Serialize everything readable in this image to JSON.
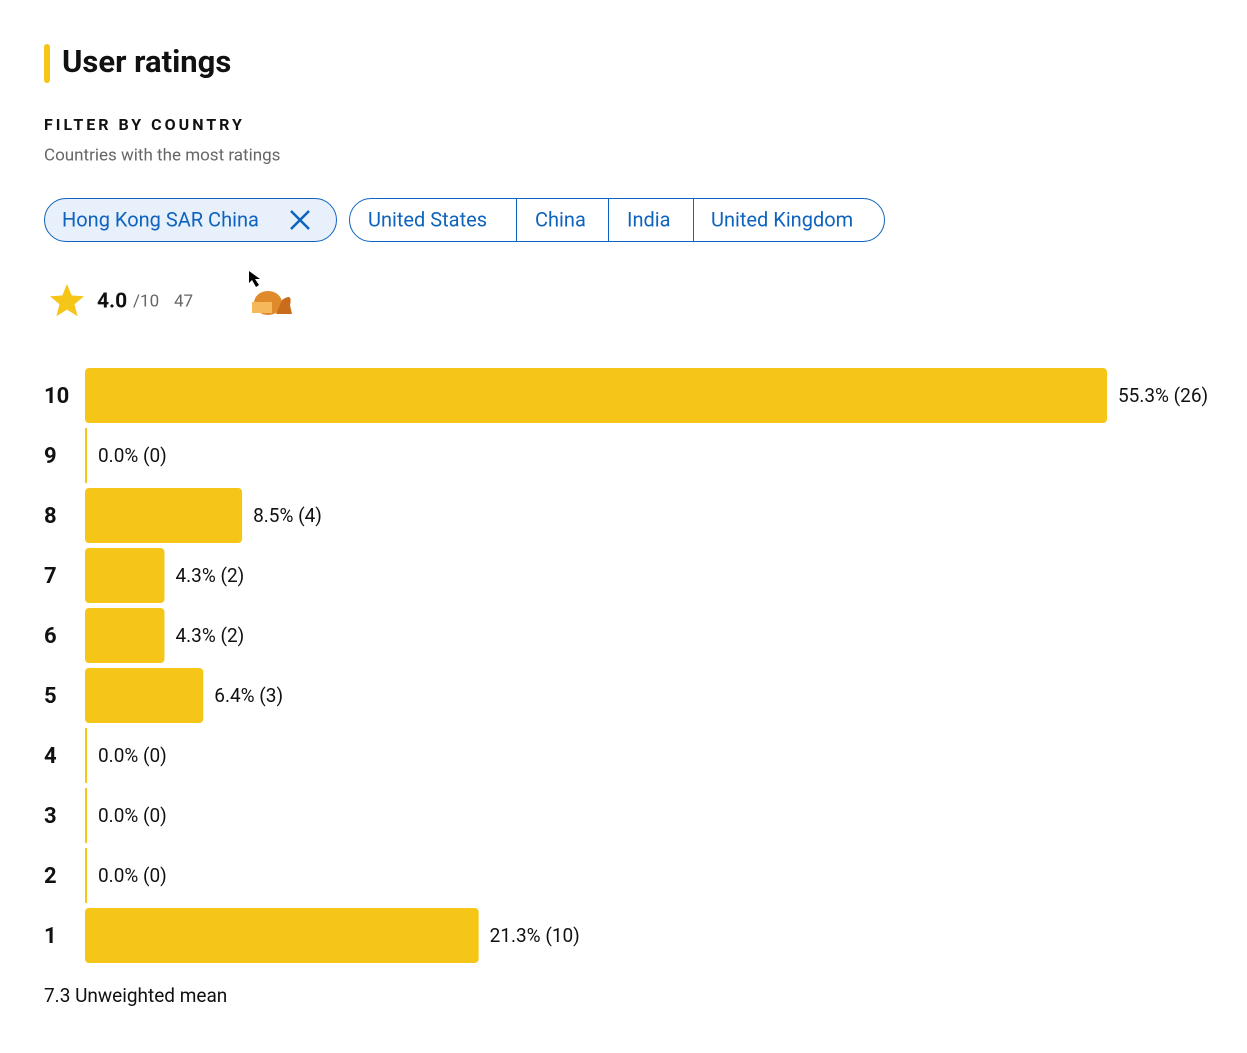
{
  "header": {
    "title": "User ratings"
  },
  "filter": {
    "heading": "FILTER BY COUNTRY",
    "subheading": "Countries with the most ratings",
    "selected": "Hong Kong SAR China",
    "options": [
      "United States",
      "China",
      "India",
      "United Kingdom"
    ]
  },
  "summary": {
    "rating": "4.0",
    "scale": "/10",
    "count": "47"
  },
  "chart_data": {
    "type": "bar",
    "orientation": "horizontal",
    "categories": [
      "10",
      "9",
      "8",
      "7",
      "6",
      "5",
      "4",
      "3",
      "2",
      "1"
    ],
    "values": [
      55.3,
      0.0,
      8.5,
      4.3,
      4.3,
      6.4,
      0.0,
      0.0,
      0.0,
      21.3
    ],
    "value_labels": [
      "55.3% (26)",
      "0.0% (0)",
      "8.5% (4)",
      "4.3% (2)",
      "4.3% (2)",
      "6.4% (3)",
      "0.0% (0)",
      "0.0% (0)",
      "0.0% (0)",
      "21.3% (10)"
    ],
    "color": "#f5c518"
  },
  "footer": "7.3 Unweighted mean"
}
